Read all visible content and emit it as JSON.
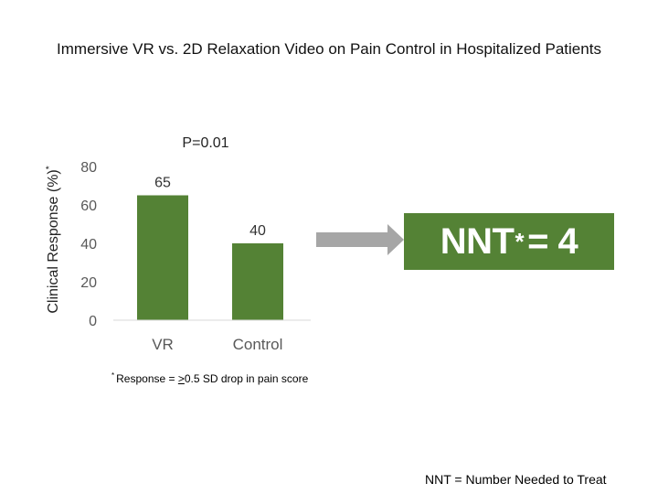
{
  "colors": {
    "bar": "#548235",
    "nnt_box": "#548235",
    "arrow": "#a6a6a6",
    "axis_text": "#595959",
    "axis_line": "#d9d9d9"
  },
  "chart_data": {
    "type": "bar",
    "title": "Immersive VR vs. 2D Relaxation Video on Pain Control in Hospitalized Patients",
    "ylabel": "Clinical Response (%)",
    "ylabel_marker": "*",
    "categories": [
      "VR",
      "Control"
    ],
    "values": [
      65,
      40
    ],
    "data_labels": [
      "65",
      "40"
    ],
    "ylim": [
      0,
      80
    ],
    "yticks": [
      "0",
      "20",
      "40",
      "60",
      "80"
    ],
    "grid": false,
    "annotation": "P=0.01"
  },
  "footnote": {
    "marker": "*",
    "prefix": "Response = ",
    "symbol": ">",
    "suffix": "0.5 SD drop in pain score"
  },
  "nnt": {
    "label": "NNT",
    "marker": "*",
    "value_text": "= 4"
  },
  "bottom_note": "NNT = Number Needed to Treat"
}
